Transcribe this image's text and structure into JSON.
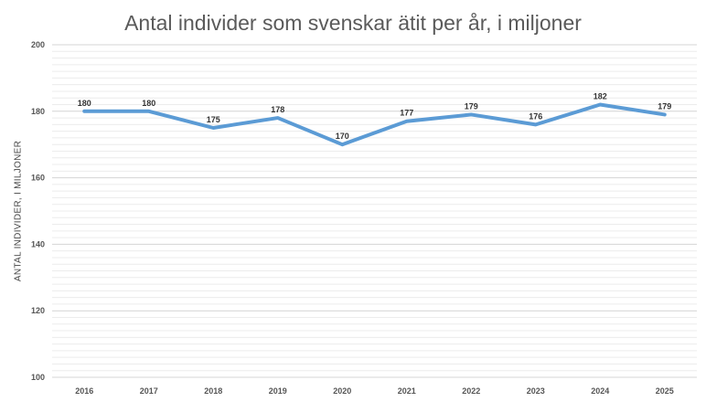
{
  "chart_data": {
    "type": "line",
    "title": "Antal individer som svenskar ätit per år, i miljoner",
    "xlabel": "",
    "ylabel": "ANTAL INDIVIDER, I MILJONER",
    "categories": [
      "2016",
      "2017",
      "2018",
      "2019",
      "2020",
      "2021",
      "2022",
      "2023",
      "2024",
      "2025"
    ],
    "series": [
      {
        "values": [
          180,
          180,
          175,
          178,
          170,
          177,
          179,
          176,
          182,
          179
        ]
      }
    ],
    "data_labels": [
      "180",
      "180",
      "175",
      "178",
      "170",
      "177",
      "179",
      "176",
      "182",
      "179"
    ],
    "ylim": [
      100,
      200
    ],
    "yticks": [
      "100",
      "120",
      "140",
      "160",
      "180",
      "200"
    ],
    "grid": true,
    "legend": "none",
    "line_color": "#5b9bd5"
  }
}
